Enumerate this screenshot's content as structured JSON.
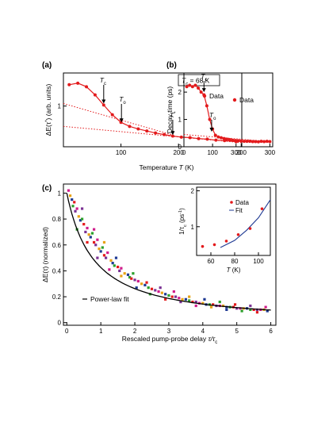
{
  "chart_data": [
    {
      "id": "a",
      "type": "line",
      "panel_label": "(a)",
      "xlabel": "Temperature T (K)",
      "ylabel": "ΔE(τ*) (arb. units)",
      "ylabel_main": "ΔE(τ",
      "ylabel_sup": "*",
      "ylabel_rest": ")  (arb. units)",
      "xlim": [
        0,
        310
      ],
      "ylim": [
        0.2,
        1.65
      ],
      "xticks": [
        100,
        200,
        300
      ],
      "yticks": [
        1
      ],
      "tc_box": "T",
      "tc_box_sub": "c",
      "tc_box_rest": " = 68 K",
      "legend": [
        "Data"
      ],
      "annotations": [
        {
          "text": "T",
          "sub": "c",
          "x": 70,
          "y": 1.3
        },
        {
          "text": "T",
          "sub": "o",
          "x": 105,
          "y": 0.78
        },
        {
          "text": "T",
          "sup": "*",
          "x": 190,
          "y": 0.53
        }
      ],
      "x": [
        10,
        25,
        40,
        55,
        70,
        85,
        100,
        115,
        130,
        145,
        160,
        175,
        190,
        205,
        220,
        235,
        250,
        265,
        280,
        300
      ],
      "y": [
        1.42,
        1.45,
        1.38,
        1.22,
        1.02,
        0.83,
        0.68,
        0.6,
        0.55,
        0.51,
        0.47,
        0.44,
        0.41,
        0.39,
        0.38,
        0.36,
        0.35,
        0.33,
        0.32,
        0.3
      ],
      "dotted_lines": [
        {
          "x": [
            0,
            190
          ],
          "y": [
            1.05,
            0.43
          ]
        },
        {
          "x": [
            0,
            310
          ],
          "y": [
            0.6,
            0.28
          ]
        }
      ]
    },
    {
      "id": "b",
      "type": "line",
      "panel_label": "(b)",
      "xlabel": "Temperature T (K)",
      "ylabel": "Decay time (ps)",
      "xlim": [
        0,
        310
      ],
      "ylim": [
        0,
        2.7
      ],
      "xticks": [
        0,
        100,
        200,
        300
      ],
      "yticks": [
        0,
        1,
        2
      ],
      "legend": [
        "Data"
      ],
      "annotations": [
        {
          "text": "T",
          "sub": "c",
          "x": 70,
          "y": 2.4
        },
        {
          "text": "T",
          "sub": "o",
          "x": 105,
          "y": 1.2
        }
      ],
      "x": [
        10,
        20,
        30,
        40,
        50,
        60,
        70,
        80,
        90,
        100,
        110,
        120,
        130,
        140,
        150,
        160,
        170,
        180,
        190,
        200,
        210,
        220,
        230,
        240,
        250,
        260,
        270,
        280,
        290,
        300
      ],
      "y": [
        2.2,
        2.25,
        2.2,
        2.25,
        2.15,
        2.0,
        1.9,
        1.5,
        1.0,
        0.65,
        0.42,
        0.36,
        0.33,
        0.3,
        0.28,
        0.26,
        0.24,
        0.23,
        0.22,
        0.21,
        0.2,
        0.2,
        0.2,
        0.19,
        0.19,
        0.18,
        0.2,
        0.19,
        0.2,
        0.19
      ],
      "dotted_lines": [
        {
          "x": [
            0,
            310
          ],
          "y": [
            0.45,
            0.18
          ]
        }
      ]
    },
    {
      "id": "c",
      "type": "scatter",
      "panel_label": "(c)",
      "xlabel": "Rescaled pump-probe delay τ/τ",
      "xlabel_sub": "c",
      "ylabel": "ΔE(τ)  (normalized)",
      "xlim": [
        -0.1,
        6.15
      ],
      "ylim": [
        -0.02,
        1.07
      ],
      "xticks": [
        0,
        1,
        2,
        3,
        4,
        5,
        6
      ],
      "yticks": [
        0,
        0.2,
        0.4,
        0.6,
        0.8,
        1
      ],
      "ytick_labels": [
        "0",
        "0.2",
        "0.4",
        "0.6",
        "0.8",
        "1"
      ],
      "legend": [
        "Power-law fit"
      ],
      "series_colors": [
        "#d01c8b",
        "#e8a317",
        "#1f3a93",
        "#2ca02c",
        "#e31a1c",
        "#7b3294"
      ],
      "fit": {
        "formula": "y = (1 + 1.1 x)^-1.15 (approx.)"
      },
      "points": [
        [
          0.05,
          1.02
        ],
        [
          0.1,
          0.98
        ],
        [
          0.15,
          0.95
        ],
        [
          0.18,
          0.9
        ],
        [
          0.22,
          0.93
        ],
        [
          0.25,
          0.86
        ],
        [
          0.3,
          0.88
        ],
        [
          0.35,
          0.82
        ],
        [
          0.4,
          0.79
        ],
        [
          0.45,
          0.8
        ],
        [
          0.5,
          0.76
        ],
        [
          0.55,
          0.7
        ],
        [
          0.6,
          0.73
        ],
        [
          0.65,
          0.68
        ],
        [
          0.7,
          0.66
        ],
        [
          0.75,
          0.69
        ],
        [
          0.8,
          0.62
        ],
        [
          0.85,
          0.6
        ],
        [
          0.9,
          0.64
        ],
        [
          0.95,
          0.57
        ],
        [
          1.0,
          0.55
        ],
        [
          1.05,
          0.58
        ],
        [
          1.1,
          0.52
        ],
        [
          1.15,
          0.5
        ],
        [
          1.2,
          0.54
        ],
        [
          1.3,
          0.48
        ],
        [
          1.35,
          0.46
        ],
        [
          1.4,
          0.44
        ],
        [
          1.5,
          0.43
        ],
        [
          1.55,
          0.4
        ],
        [
          1.6,
          0.42
        ],
        [
          1.7,
          0.38
        ],
        [
          1.8,
          0.37
        ],
        [
          1.85,
          0.35
        ],
        [
          1.9,
          0.34
        ],
        [
          2.0,
          0.33
        ],
        [
          2.1,
          0.32
        ],
        [
          2.2,
          0.3
        ],
        [
          2.3,
          0.29
        ],
        [
          2.4,
          0.27
        ],
        [
          2.5,
          0.26
        ],
        [
          2.6,
          0.25
        ],
        [
          2.7,
          0.24
        ],
        [
          2.8,
          0.23
        ],
        [
          2.9,
          0.22
        ],
        [
          3.0,
          0.21
        ],
        [
          3.1,
          0.2
        ],
        [
          3.2,
          0.2
        ],
        [
          3.3,
          0.19
        ],
        [
          3.4,
          0.18
        ],
        [
          3.5,
          0.18
        ],
        [
          3.6,
          0.17
        ],
        [
          3.7,
          0.16
        ],
        [
          3.8,
          0.16
        ],
        [
          3.9,
          0.15
        ],
        [
          4.0,
          0.15
        ],
        [
          4.1,
          0.14
        ],
        [
          4.2,
          0.14
        ],
        [
          4.3,
          0.14
        ],
        [
          4.4,
          0.13
        ],
        [
          4.5,
          0.13
        ],
        [
          4.6,
          0.13
        ],
        [
          4.7,
          0.12
        ],
        [
          4.8,
          0.12
        ],
        [
          4.9,
          0.12
        ],
        [
          5.0,
          0.11
        ],
        [
          5.1,
          0.11
        ],
        [
          5.2,
          0.11
        ],
        [
          5.3,
          0.11
        ],
        [
          5.4,
          0.1
        ],
        [
          5.5,
          0.1
        ],
        [
          5.6,
          0.1
        ],
        [
          5.7,
          0.1
        ],
        [
          5.8,
          0.1
        ],
        [
          5.9,
          0.09
        ],
        [
          0.3,
          0.72
        ],
        [
          0.6,
          0.62
        ],
        [
          0.9,
          0.5
        ],
        [
          1.25,
          0.41
        ],
        [
          1.6,
          0.36
        ],
        [
          2.05,
          0.27
        ],
        [
          2.45,
          0.22
        ],
        [
          2.9,
          0.18
        ],
        [
          3.35,
          0.16
        ],
        [
          3.8,
          0.13
        ],
        [
          4.25,
          0.12
        ],
        [
          4.7,
          0.1
        ],
        [
          5.15,
          0.09
        ],
        [
          5.6,
          0.08
        ],
        [
          0.45,
          0.88
        ],
        [
          0.8,
          0.72
        ],
        [
          1.1,
          0.62
        ],
        [
          1.45,
          0.5
        ],
        [
          1.95,
          0.38
        ],
        [
          2.35,
          0.31
        ],
        [
          2.75,
          0.27
        ],
        [
          3.15,
          0.24
        ],
        [
          3.6,
          0.2
        ],
        [
          4.05,
          0.18
        ],
        [
          4.5,
          0.16
        ],
        [
          4.95,
          0.14
        ],
        [
          5.4,
          0.13
        ],
        [
          5.85,
          0.12
        ]
      ],
      "inset": {
        "type": "scatter",
        "xlabel": "T (K)",
        "ylabel": "1/τ",
        "ylabel_sub": "c",
        "ylabel_rest": " (ps",
        "ylabel_sup": "-1",
        "ylabel_end": ")",
        "xlim": [
          48,
          110
        ],
        "ylim": [
          0.2,
          2.1
        ],
        "xticks": [
          60,
          80,
          100
        ],
        "yticks": [
          1,
          2
        ],
        "legend": [
          "Data",
          "Fit"
        ],
        "x": [
          53,
          63,
          73,
          83,
          93,
          103
        ],
        "y": [
          0.45,
          0.5,
          0.6,
          0.78,
          0.95,
          1.5
        ],
        "fit_x": [
          68,
          110
        ],
        "fit_y": [
          0.42,
          1.75
        ]
      }
    }
  ]
}
